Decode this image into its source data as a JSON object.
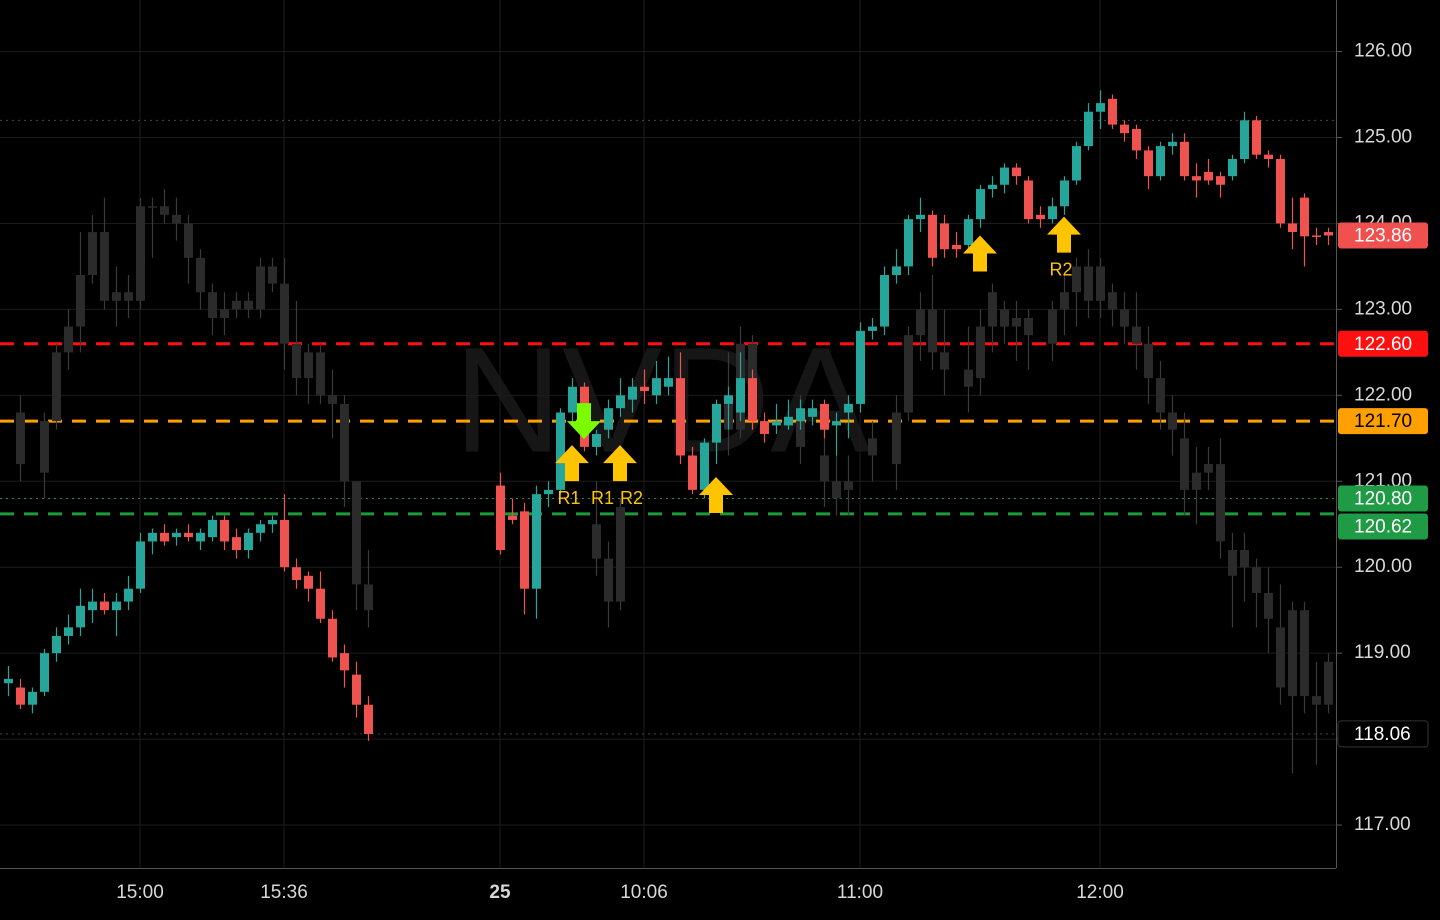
{
  "chart_data": {
    "type": "candlestick",
    "watermark": "NVDA",
    "up_color": "#26a69a",
    "down_color": "#ef5350",
    "overlay_color": "#2b2b2b",
    "overlay_wick": "#3a3a3a",
    "grid": true,
    "ylim": [
      116.5,
      126.6
    ],
    "yticks": [
      {
        "value": 117,
        "label": "117.00"
      },
      {
        "value": 118,
        "label": "118.00"
      },
      {
        "value": 119,
        "label": "119.00"
      },
      {
        "value": 120,
        "label": "120.00"
      },
      {
        "value": 121,
        "label": "121.00"
      },
      {
        "value": 122,
        "label": "122.00"
      },
      {
        "value": 123,
        "label": "123.00"
      },
      {
        "value": 124,
        "label": "124.00"
      },
      {
        "value": 125,
        "label": "125.00"
      },
      {
        "value": 126,
        "label": "126.00"
      }
    ],
    "categories": [
      null,
      null,
      null,
      null,
      null,
      null,
      null,
      null,
      null,
      null,
      null,
      "15:00",
      null,
      null,
      null,
      null,
      null,
      null,
      null,
      null,
      null,
      null,
      null,
      "15:36",
      null,
      null,
      null,
      null,
      null,
      null,
      null,
      null,
      null,
      null,
      null,
      null,
      null,
      null,
      null,
      null,
      null,
      "25",
      null,
      null,
      null,
      null,
      null,
      null,
      null,
      null,
      null,
      null,
      null,
      "10:06",
      null,
      null,
      null,
      null,
      null,
      null,
      null,
      null,
      null,
      null,
      null,
      null,
      null,
      null,
      null,
      null,
      null,
      "11:00",
      null,
      null,
      null,
      null,
      null,
      null,
      null,
      null,
      null,
      null,
      null,
      null,
      null,
      null,
      null,
      null,
      null,
      null,
      null,
      "12:00",
      null,
      null,
      null,
      null,
      null,
      null,
      null,
      null,
      null,
      null,
      null,
      null,
      null,
      null,
      null,
      null,
      null,
      null,
      null
    ],
    "candles": [
      [
        118.65,
        118.85,
        118.5,
        118.7
      ],
      [
        118.6,
        118.7,
        118.35,
        118.4
      ],
      [
        118.4,
        118.6,
        118.3,
        118.55
      ],
      [
        118.55,
        119.05,
        118.5,
        119.0
      ],
      [
        119.0,
        119.3,
        118.9,
        119.2
      ],
      [
        119.2,
        119.45,
        119.1,
        119.3
      ],
      [
        119.3,
        119.75,
        119.2,
        119.55
      ],
      [
        119.5,
        119.75,
        119.35,
        119.6
      ],
      [
        119.6,
        119.7,
        119.45,
        119.5
      ],
      [
        119.5,
        119.7,
        119.2,
        119.6
      ],
      [
        119.6,
        119.9,
        119.5,
        119.75
      ],
      [
        119.75,
        120.4,
        119.7,
        120.3
      ],
      [
        120.3,
        120.45,
        120.15,
        120.4
      ],
      [
        120.4,
        120.5,
        120.25,
        120.3
      ],
      [
        120.35,
        120.45,
        120.25,
        120.4
      ],
      [
        120.4,
        120.5,
        120.3,
        120.35
      ],
      [
        120.3,
        120.45,
        120.2,
        120.4
      ],
      [
        120.35,
        120.6,
        120.3,
        120.55
      ],
      [
        120.55,
        120.6,
        120.2,
        120.3
      ],
      [
        120.35,
        120.45,
        120.1,
        120.2
      ],
      [
        120.2,
        120.45,
        120.1,
        120.4
      ],
      [
        120.4,
        120.55,
        120.3,
        120.5
      ],
      [
        120.5,
        120.6,
        120.4,
        120.55
      ],
      [
        120.55,
        120.85,
        119.95,
        120.0
      ],
      [
        120.0,
        120.1,
        119.75,
        119.85
      ],
      [
        119.9,
        119.95,
        119.6,
        119.75
      ],
      [
        119.75,
        119.95,
        119.35,
        119.4
      ],
      [
        119.4,
        119.5,
        118.9,
        118.95
      ],
      [
        119.0,
        119.1,
        118.6,
        118.8
      ],
      [
        118.75,
        118.9,
        118.25,
        118.4
      ],
      [
        118.4,
        118.5,
        117.98,
        118.06
      ],
      null,
      null,
      null,
      null,
      null,
      null,
      null,
      null,
      null,
      null,
      [
        120.95,
        121.1,
        120.15,
        120.2
      ],
      [
        120.6,
        120.8,
        120.5,
        120.55
      ],
      [
        120.65,
        120.75,
        119.45,
        119.75
      ],
      [
        119.75,
        120.95,
        119.4,
        120.85
      ],
      [
        120.85,
        121.0,
        120.7,
        120.9
      ],
      [
        120.9,
        121.85,
        120.85,
        121.8
      ],
      [
        121.8,
        122.2,
        121.7,
        122.1
      ],
      [
        122.1,
        122.15,
        121.35,
        121.4
      ],
      [
        121.4,
        121.6,
        121.3,
        121.55
      ],
      [
        121.6,
        121.95,
        121.5,
        121.85
      ],
      [
        121.85,
        122.2,
        121.75,
        122.0
      ],
      [
        121.95,
        122.2,
        121.8,
        122.1
      ],
      [
        122.1,
        122.3,
        121.9,
        122.05
      ],
      [
        122.0,
        122.4,
        121.9,
        122.2
      ],
      [
        122.1,
        122.45,
        122.0,
        122.2
      ],
      [
        122.2,
        122.5,
        121.2,
        121.3
      ],
      [
        121.3,
        121.4,
        120.85,
        120.9
      ],
      [
        120.9,
        121.5,
        120.8,
        121.45
      ],
      [
        121.45,
        121.95,
        121.2,
        121.9
      ],
      [
        121.9,
        122.1,
        121.6,
        122.0
      ],
      [
        121.8,
        122.5,
        121.7,
        122.2
      ],
      [
        122.2,
        122.3,
        121.6,
        121.7
      ],
      [
        121.7,
        121.8,
        121.45,
        121.55
      ],
      [
        121.65,
        121.9,
        121.55,
        121.7
      ],
      [
        121.65,
        121.95,
        121.6,
        121.75
      ],
      [
        121.7,
        121.95,
        121.6,
        121.85
      ],
      [
        121.75,
        121.95,
        121.65,
        121.85
      ],
      [
        121.9,
        121.95,
        121.5,
        121.6
      ],
      [
        121.65,
        121.8,
        121.3,
        121.7
      ],
      [
        121.8,
        122.0,
        121.5,
        121.9
      ],
      [
        121.9,
        122.85,
        121.8,
        122.75
      ],
      [
        122.75,
        122.9,
        122.65,
        122.8
      ],
      [
        122.8,
        123.5,
        122.7,
        123.4
      ],
      [
        123.4,
        123.7,
        123.3,
        123.5
      ],
      [
        123.5,
        124.1,
        123.4,
        124.05
      ],
      [
        124.05,
        124.3,
        123.9,
        124.1
      ],
      [
        124.1,
        124.15,
        123.5,
        123.6
      ],
      [
        124.0,
        124.1,
        123.6,
        123.7
      ],
      [
        123.75,
        123.9,
        123.6,
        123.7
      ],
      [
        123.75,
        124.1,
        123.7,
        124.05
      ],
      [
        124.05,
        124.45,
        123.95,
        124.4
      ],
      [
        124.4,
        124.55,
        124.3,
        124.45
      ],
      [
        124.45,
        124.7,
        124.35,
        124.65
      ],
      [
        124.65,
        124.7,
        124.45,
        124.55
      ],
      [
        124.5,
        124.55,
        124.0,
        124.05
      ],
      [
        124.1,
        124.2,
        123.95,
        124.05
      ],
      [
        124.05,
        124.3,
        124.0,
        124.2
      ],
      [
        124.2,
        124.55,
        124.1,
        124.5
      ],
      [
        124.5,
        124.95,
        124.45,
        124.9
      ],
      [
        124.9,
        125.4,
        124.85,
        125.3
      ],
      [
        125.3,
        125.55,
        125.1,
        125.4
      ],
      [
        125.45,
        125.5,
        125.1,
        125.15
      ],
      [
        125.15,
        125.2,
        124.95,
        125.05
      ],
      [
        125.1,
        125.15,
        124.75,
        124.85
      ],
      [
        124.85,
        124.9,
        124.4,
        124.55
      ],
      [
        124.55,
        124.95,
        124.5,
        124.9
      ],
      [
        124.9,
        125.05,
        124.8,
        124.95
      ],
      [
        124.95,
        125.05,
        124.5,
        124.55
      ],
      [
        124.55,
        124.7,
        124.3,
        124.5
      ],
      [
        124.6,
        124.75,
        124.45,
        124.5
      ],
      [
        124.55,
        124.6,
        124.3,
        124.45
      ],
      [
        124.55,
        124.8,
        124.5,
        124.75
      ],
      [
        124.75,
        125.3,
        124.7,
        125.2
      ],
      [
        125.2,
        125.25,
        124.75,
        124.8
      ],
      [
        124.8,
        124.85,
        124.65,
        124.75
      ],
      [
        124.75,
        124.8,
        123.95,
        124.0
      ],
      [
        124.0,
        124.3,
        123.7,
        123.9
      ],
      [
        124.3,
        124.35,
        123.5,
        123.85
      ],
      [
        123.86,
        123.95,
        123.75,
        123.85
      ],
      [
        123.9,
        123.95,
        123.75,
        123.86
      ]
    ],
    "overlay_candles": [
      null,
      [
        121.8,
        122.0,
        121.0,
        121.2
      ],
      null,
      [
        121.1,
        121.8,
        120.8,
        121.7
      ],
      [
        121.7,
        122.6,
        121.6,
        122.5
      ],
      [
        122.5,
        123.0,
        122.3,
        122.8
      ],
      [
        122.8,
        123.9,
        122.5,
        123.4
      ],
      [
        123.4,
        124.1,
        123.3,
        123.9
      ],
      [
        123.9,
        124.3,
        123.0,
        123.1
      ],
      [
        123.1,
        123.5,
        122.8,
        123.2
      ],
      [
        123.2,
        123.4,
        122.9,
        123.1
      ],
      [
        123.1,
        124.3,
        123.0,
        124.2
      ],
      [
        124.2,
        124.3,
        123.6,
        124.2
      ],
      [
        124.2,
        124.4,
        124.0,
        124.1
      ],
      [
        124.1,
        124.3,
        123.8,
        124.0
      ],
      [
        124.0,
        124.1,
        123.3,
        123.6
      ],
      [
        123.6,
        123.7,
        123.0,
        123.2
      ],
      [
        123.2,
        123.3,
        122.7,
        122.9
      ],
      [
        122.9,
        123.2,
        122.7,
        123.0
      ],
      [
        123.0,
        123.2,
        122.9,
        123.1
      ],
      [
        123.1,
        123.2,
        122.9,
        123.0
      ],
      [
        123.0,
        123.6,
        122.9,
        123.5
      ],
      [
        123.5,
        123.6,
        123.2,
        123.3
      ],
      [
        123.3,
        123.6,
        122.3,
        122.6
      ],
      [
        122.6,
        123.1,
        122.0,
        122.2
      ],
      [
        122.2,
        122.6,
        121.9,
        122.5
      ],
      [
        122.5,
        122.6,
        121.9,
        122.0
      ],
      [
        122.0,
        122.3,
        121.5,
        121.9
      ],
      [
        121.9,
        122.0,
        120.7,
        121.0
      ],
      [
        121.0,
        121.0,
        119.5,
        119.8
      ],
      [
        119.8,
        120.2,
        119.3,
        119.5
      ],
      null,
      null,
      null,
      null,
      null,
      null,
      null,
      null,
      null,
      null,
      null,
      null,
      null,
      null,
      null,
      null,
      null,
      null,
      [
        120.5,
        121.0,
        119.9,
        120.1
      ],
      [
        120.1,
        120.3,
        119.3,
        119.6
      ],
      [
        119.6,
        120.8,
        119.5,
        120.7
      ],
      null,
      null,
      null,
      null,
      [
        121.8,
        122.3,
        121.4,
        121.5
      ],
      null,
      null,
      null,
      [
        121.9,
        122.5,
        121.3,
        121.6
      ],
      [
        121.6,
        122.8,
        121.5,
        122.6
      ],
      [
        122.6,
        122.7,
        121.7,
        121.9
      ],
      null,
      null,
      null,
      [
        121.7,
        122.0,
        121.2,
        121.4
      ],
      null,
      [
        121.3,
        121.6,
        120.7,
        121.0
      ],
      [
        121.0,
        121.3,
        120.6,
        120.8
      ],
      [
        120.9,
        121.3,
        120.6,
        121.0
      ],
      null,
      [
        121.3,
        121.7,
        121.0,
        121.5
      ],
      null,
      [
        121.2,
        122.0,
        120.9,
        121.8
      ],
      [
        121.8,
        122.8,
        121.7,
        122.7
      ],
      [
        122.7,
        123.2,
        122.4,
        123.0
      ],
      [
        123.0,
        123.4,
        122.3,
        122.5
      ],
      [
        122.5,
        123.0,
        122.0,
        122.3
      ],
      null,
      [
        122.3,
        122.8,
        121.8,
        122.1
      ],
      [
        122.2,
        123.0,
        122.0,
        122.8
      ],
      [
        122.8,
        123.3,
        122.5,
        123.2
      ],
      [
        123.0,
        123.1,
        122.6,
        122.8
      ],
      [
        122.8,
        123.1,
        122.4,
        122.9
      ],
      [
        122.9,
        123.0,
        122.3,
        122.7
      ],
      null,
      [
        122.6,
        123.1,
        122.4,
        123.0
      ],
      [
        123.0,
        123.4,
        122.7,
        123.2
      ],
      [
        123.2,
        123.6,
        122.8,
        123.5
      ],
      [
        123.5,
        123.7,
        122.9,
        123.1
      ],
      [
        123.1,
        123.6,
        122.9,
        123.5
      ],
      [
        123.2,
        123.3,
        122.8,
        123.0
      ],
      [
        123.0,
        123.2,
        122.6,
        122.8
      ],
      [
        122.8,
        123.2,
        122.3,
        122.6
      ],
      [
        122.6,
        122.8,
        121.9,
        122.2
      ],
      [
        122.2,
        122.4,
        121.6,
        121.8
      ],
      [
        121.8,
        122.0,
        121.3,
        121.6
      ],
      [
        121.5,
        121.8,
        120.6,
        120.9
      ],
      [
        120.9,
        121.4,
        120.5,
        121.1
      ],
      [
        121.1,
        121.4,
        120.9,
        121.2
      ],
      [
        121.2,
        121.5,
        120.1,
        120.3
      ],
      [
        120.2,
        120.4,
        119.3,
        119.9
      ],
      [
        120.0,
        120.4,
        119.6,
        120.2
      ],
      [
        120.0,
        120.1,
        119.3,
        119.7
      ],
      [
        119.7,
        120.0,
        119.0,
        119.4
      ],
      [
        119.3,
        119.8,
        118.4,
        118.6
      ],
      [
        118.5,
        119.6,
        117.6,
        119.5
      ],
      [
        119.5,
        119.6,
        118.3,
        118.5
      ],
      [
        118.5,
        118.9,
        117.7,
        118.4
      ],
      [
        118.4,
        119.0,
        118.3,
        118.9
      ]
    ],
    "price_lines": [
      {
        "value": 125.2,
        "line": "dotted",
        "color": "#4a4a4a"
      },
      {
        "value": 123.86,
        "badge_color": "#f0514f",
        "text_color": "#ffffff"
      },
      {
        "value": 122.6,
        "label": "122.60",
        "line": "dashed",
        "color": "#ff1010",
        "badge_color": "#ff1010",
        "text_color": "#ffffff"
      },
      {
        "value": 121.7,
        "label": "121.70",
        "line": "dashed",
        "color": "#ffa000",
        "badge_color": "#ffa000",
        "text_color": "#000000"
      },
      {
        "value": 120.8,
        "label": "120.80",
        "line": "dotted",
        "color": "#1e8c3a",
        "badge_color": "#1f9a45",
        "text_color": "#ffffff"
      },
      {
        "value": 120.62,
        "line": "dashed",
        "color": "#1e9a3c",
        "badge_color": "#1f9a45",
        "text_color": "#ffffff"
      },
      {
        "value": 118.06,
        "line": "dotted",
        "color": "#444444",
        "badge_color": "#000000",
        "text_color": "#ffffff"
      }
    ],
    "markers": [
      {
        "x": 47,
        "price": 121.42,
        "direction": "up",
        "color": "#ffc400",
        "labels": [
          "R1"
        ]
      },
      {
        "x": 48,
        "price": 121.49,
        "direction": "down",
        "color": "#7cfc00"
      },
      {
        "x": 51,
        "price": 121.42,
        "direction": "up",
        "color": "#ffc400",
        "labels": [
          "R1",
          "R2"
        ]
      },
      {
        "x": 59,
        "price": 121.05,
        "direction": "up",
        "color": "#ffc400"
      },
      {
        "x": 81,
        "price": 123.86,
        "direction": "up",
        "color": "#ffc400"
      },
      {
        "x": 88,
        "price": 124.08,
        "direction": "up",
        "color": "#ffc400",
        "labels": [
          "R2"
        ]
      }
    ]
  }
}
